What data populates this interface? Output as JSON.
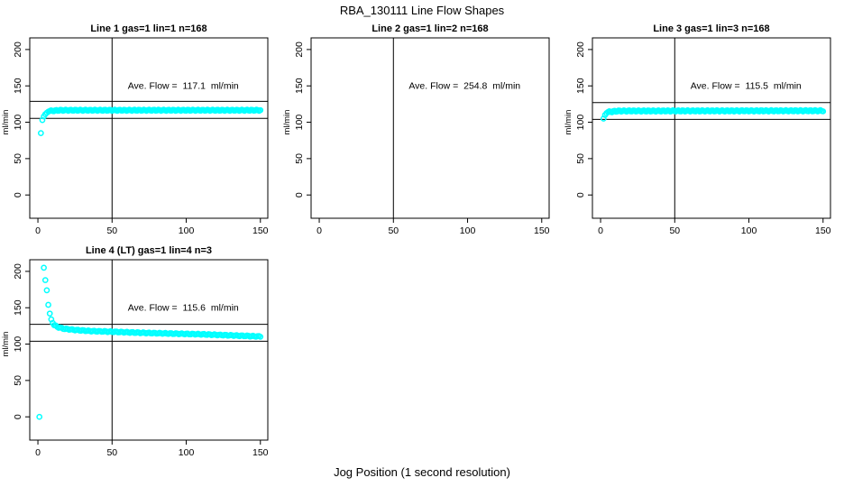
{
  "figure": {
    "title": "RBA_130111  Line Flow Shapes",
    "xlabel": "Jog Position (1 second resolution)",
    "background_color": "#ffffff",
    "axis_color": "#000000",
    "marker_color": "#00ffff"
  },
  "chart_data": [
    {
      "type": "scatter",
      "title": "Line 1 gas=1 lin=1 n=168",
      "line": 1,
      "gas": 1,
      "lin": 1,
      "n": 168,
      "annotation": "Ave. Flow =  117.1  ml/min",
      "ave_flow": 117.1,
      "ylabel": "ml/min",
      "xticks": [
        0,
        50,
        100,
        150
      ],
      "yticks": [
        0,
        50,
        100,
        150,
        200
      ],
      "xlim": [
        -5.5,
        155
      ],
      "ylim": [
        -32,
        216
      ],
      "vline_x": 50,
      "ref_lines": [
        128.8,
        105.4
      ],
      "marker_color": "#00ffff",
      "head_points": [
        [
          2,
          85
        ],
        [
          3,
          103
        ],
        [
          4,
          108
        ],
        [
          5,
          111
        ],
        [
          6,
          113
        ],
        [
          7,
          114.5
        ]
      ],
      "band_anchors": [
        [
          8,
          115.5
        ],
        [
          15,
          116.5
        ],
        [
          150,
          116.5
        ]
      ],
      "band_count": 160,
      "band_wiggle": 0.8,
      "annotation_pos": [
        98,
        150
      ]
    },
    {
      "type": "scatter",
      "title": "Line 2 gas=1 lin=2 n=168",
      "line": 2,
      "gas": 1,
      "lin": 2,
      "n": 168,
      "annotation": "Ave. Flow =  254.8  ml/min",
      "ave_flow": 254.8,
      "ylabel": "ml/min",
      "xticks": [
        0,
        50,
        100,
        150
      ],
      "yticks": [
        0,
        50,
        100,
        150,
        200
      ],
      "xlim": [
        -5.5,
        155
      ],
      "ylim": [
        -32,
        216
      ],
      "vline_x": 50,
      "ref_lines": [],
      "marker_color": "#00ffff",
      "head_points": [],
      "band_anchors": [],
      "band_count": 0,
      "band_wiggle": 0,
      "annotation_pos": [
        98,
        150
      ]
    },
    {
      "type": "scatter",
      "title": "Line 3 gas=1 lin=3 n=168",
      "line": 3,
      "gas": 1,
      "lin": 3,
      "n": 168,
      "annotation": "Ave. Flow =  115.5  ml/min",
      "ave_flow": 115.5,
      "ylabel": "ml/min",
      "xticks": [
        0,
        50,
        100,
        150
      ],
      "yticks": [
        0,
        50,
        100,
        150,
        200
      ],
      "xlim": [
        -5.5,
        155
      ],
      "ylim": [
        -32,
        216
      ],
      "vline_x": 50,
      "ref_lines": [
        127.1,
        104.0
      ],
      "marker_color": "#00ffff",
      "head_points": [
        [
          2,
          105
        ],
        [
          3,
          110
        ],
        [
          4,
          112.5
        ]
      ],
      "band_anchors": [
        [
          5,
          114
        ],
        [
          12,
          115.5
        ],
        [
          150,
          115.8
        ]
      ],
      "band_count": 163,
      "band_wiggle": 0.9,
      "annotation_pos": [
        98,
        150
      ]
    },
    {
      "type": "scatter",
      "title": "Line 4 (LT) gas=1 lin=4 n=3",
      "line": 4,
      "gas": 1,
      "lin": 4,
      "n": 3,
      "annotation": "Ave. Flow =  115.6  ml/min",
      "ave_flow": 115.6,
      "ylabel": "ml/min",
      "xticks": [
        0,
        50,
        100,
        150
      ],
      "yticks": [
        0,
        50,
        100,
        150,
        200
      ],
      "xlim": [
        -5.5,
        155
      ],
      "ylim": [
        -32,
        216
      ],
      "vline_x": 50,
      "ref_lines": [
        127.2,
        104.0
      ],
      "marker_color": "#00ffff",
      "head_points": [
        [
          1,
          0
        ],
        [
          4,
          205
        ],
        [
          5,
          188
        ],
        [
          6,
          174
        ],
        [
          7,
          154
        ],
        [
          8,
          142
        ],
        [
          9,
          134
        ],
        [
          10,
          129
        ]
      ],
      "band_anchors": [
        [
          11,
          126
        ],
        [
          14,
          123
        ],
        [
          18,
          121
        ],
        [
          25,
          119.5
        ],
        [
          35,
          118
        ],
        [
          50,
          117
        ],
        [
          70,
          115.5
        ],
        [
          90,
          114.5
        ],
        [
          110,
          113.5
        ],
        [
          130,
          112
        ],
        [
          150,
          110.5
        ]
      ],
      "band_count": 140,
      "band_wiggle": 0.7,
      "annotation_pos": [
        98,
        150
      ]
    }
  ]
}
